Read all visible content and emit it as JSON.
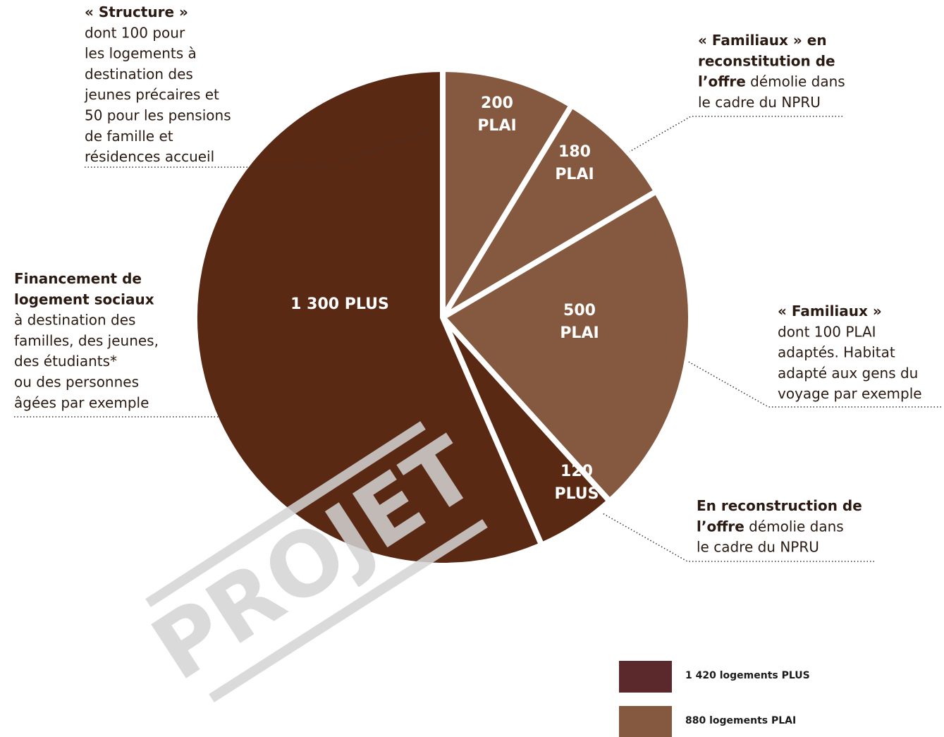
{
  "chart_data": {
    "type": "pie",
    "categories": [
      "PLAI",
      "PLAI",
      "PLAI",
      "PLUS",
      "PLUS"
    ],
    "values": [
      200,
      180,
      500,
      120,
      1300
    ],
    "value_labels": [
      "200",
      "180",
      "500",
      "120",
      "1 300"
    ],
    "colors": [
      "#85593f",
      "#85593f",
      "#85593f",
      "#5a2914",
      "#5a2914"
    ],
    "start_angle": 0,
    "direction": "clockwise",
    "legend": [
      {
        "label": "1 420 logements PLUS",
        "color": "#5b292b"
      },
      {
        "label": "880 logements PLAI",
        "color": "#85593f"
      }
    ],
    "legend_position": "lower right",
    "watermark": "PROJET",
    "annotations": [
      {
        "lines": [
          [
            {
              "text": "« Structure »",
              "bold": true
            }
          ],
          [
            {
              "text": "dont 100 pour",
              "bold": false
            }
          ],
          [
            {
              "text": "les logements à",
              "bold": false
            }
          ],
          [
            {
              "text": "destination des",
              "bold": false
            }
          ],
          [
            {
              "text": "jeunes précaires et",
              "bold": false
            }
          ],
          [
            {
              "text": "50 pour les pensions",
              "bold": false
            }
          ],
          [
            {
              "text": "de famille et",
              "bold": false
            }
          ],
          [
            {
              "text": "résidences accueil",
              "bold": false
            }
          ]
        ]
      },
      {
        "lines": [
          [
            {
              "text": "Financement de",
              "bold": true
            }
          ],
          [
            {
              "text": "logement sociaux",
              "bold": true
            }
          ],
          [
            {
              "text": "à destination des",
              "bold": false
            }
          ],
          [
            {
              "text": "familles, des jeunes,",
              "bold": false
            }
          ],
          [
            {
              "text": "des étudiants*",
              "bold": false
            }
          ],
          [
            {
              "text": "ou des personnes",
              "bold": false
            }
          ],
          [
            {
              "text": "âgées par exemple",
              "bold": false
            }
          ]
        ]
      },
      {
        "lines": [
          [
            {
              "text": "« Familiaux » en",
              "bold": true
            }
          ],
          [
            {
              "text": "reconstitution de",
              "bold": true
            }
          ],
          [
            {
              "text": "l’offre",
              "bold": true
            },
            {
              "text": " démolie dans",
              "bold": false
            }
          ],
          [
            {
              "text": "le cadre du NPRU",
              "bold": false
            }
          ]
        ]
      },
      {
        "lines": [
          [
            {
              "text": "« Familiaux »",
              "bold": true
            }
          ],
          [
            {
              "text": "dont 100 PLAI",
              "bold": false
            }
          ],
          [
            {
              "text": "adaptés. Habitat",
              "bold": false
            }
          ],
          [
            {
              "text": "adapté aux gens du",
              "bold": false
            }
          ],
          [
            {
              "text": "voyage par exemple",
              "bold": false
            }
          ]
        ]
      },
      {
        "lines": [
          [
            {
              "text": "En reconstruction de",
              "bold": true
            }
          ],
          [
            {
              "text": "l’offre",
              "bold": true
            },
            {
              "text": " démolie dans",
              "bold": false
            }
          ],
          [
            {
              "text": "le cadre du NPRU",
              "bold": false
            }
          ]
        ]
      }
    ]
  }
}
